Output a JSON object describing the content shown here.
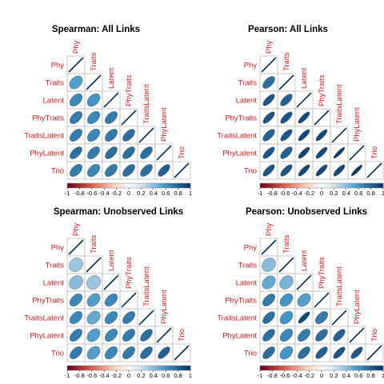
{
  "chart_data": [
    {
      "type": "heatmap",
      "title": "Spearman: All Links",
      "variables": [
        "Phy",
        "Traits",
        "Latent",
        "PhyTraits",
        "TraitsLatent",
        "PhyLatent",
        "Trio"
      ],
      "shape": "ellipse",
      "layout": "lower-triangle",
      "matrix": [
        [
          1
        ],
        [
          0.55,
          1
        ],
        [
          0.65,
          0.6,
          1
        ],
        [
          0.7,
          0.65,
          0.7,
          1
        ],
        [
          0.7,
          0.65,
          0.7,
          0.75,
          1
        ],
        [
          0.75,
          0.7,
          0.75,
          0.75,
          0.75,
          1
        ],
        [
          0.7,
          0.65,
          0.7,
          0.75,
          0.75,
          0.8,
          1
        ]
      ],
      "colorbar": {
        "range": [
          -1,
          1
        ],
        "ticks": [
          "-1",
          "-0.8",
          "-0.6",
          "-0.4",
          "-0.2",
          "0",
          "0.2",
          "0.4",
          "0.6",
          "0.8",
          "1"
        ]
      }
    },
    {
      "type": "heatmap",
      "title": "Pearson: All Links",
      "variables": [
        "Phy",
        "Traits",
        "Latent",
        "PhyTraits",
        "TraitsLatent",
        "PhyLatent",
        "Trio"
      ],
      "shape": "ellipse",
      "layout": "lower-triangle",
      "matrix": [
        [
          1
        ],
        [
          0.75,
          1
        ],
        [
          0.85,
          0.8,
          1
        ],
        [
          0.85,
          0.85,
          0.9,
          1
        ],
        [
          0.8,
          0.85,
          0.9,
          0.9,
          1
        ],
        [
          0.85,
          0.8,
          0.9,
          0.9,
          0.95,
          1
        ],
        [
          0.85,
          0.85,
          0.9,
          0.9,
          0.9,
          0.95,
          1
        ]
      ],
      "colorbar": {
        "range": [
          -1,
          1
        ],
        "ticks": [
          "-1",
          "-0.8",
          "-0.6",
          "-0.4",
          "-0.2",
          "0",
          "0.2",
          "0.4",
          "0.6",
          "0.8",
          "1"
        ]
      }
    },
    {
      "type": "heatmap",
      "title": "Spearman: Unobserved Links",
      "variables": [
        "Phy",
        "Traits",
        "Latent",
        "PhyTraits",
        "TraitsLatent",
        "PhyLatent",
        "Trio"
      ],
      "shape": "ellipse",
      "layout": "lower-triangle",
      "matrix": [
        [
          1
        ],
        [
          0.35,
          1
        ],
        [
          0.4,
          0.35,
          1
        ],
        [
          0.65,
          0.55,
          0.65,
          1
        ],
        [
          0.65,
          0.5,
          0.65,
          0.7,
          1
        ],
        [
          0.7,
          0.55,
          0.65,
          0.7,
          0.75,
          1
        ],
        [
          0.7,
          0.55,
          0.65,
          0.7,
          0.75,
          0.8,
          1
        ]
      ],
      "colorbar": {
        "range": [
          -1,
          1
        ],
        "ticks": [
          "-1",
          "-0.8",
          "-0.6",
          "-0.4",
          "-0.2",
          "0",
          "0.2",
          "0.4",
          "0.6",
          "0.8",
          "1"
        ]
      }
    },
    {
      "type": "heatmap",
      "title": "Pearson: Unobserved Links",
      "variables": [
        "Phy",
        "Traits",
        "Latent",
        "PhyTraits",
        "TraitsLatent",
        "PhyLatent",
        "Trio"
      ],
      "shape": "ellipse",
      "layout": "lower-triangle",
      "matrix": [
        [
          1
        ],
        [
          0.4,
          1
        ],
        [
          0.5,
          0.45,
          1
        ],
        [
          0.7,
          0.6,
          0.55,
          1
        ],
        [
          0.75,
          0.6,
          0.9,
          0.7,
          1
        ],
        [
          0.75,
          0.65,
          0.7,
          0.75,
          0.8,
          1
        ],
        [
          0.75,
          0.6,
          0.75,
          0.8,
          0.85,
          0.85,
          1
        ]
      ],
      "colorbar": {
        "range": [
          -1,
          1
        ],
        "ticks": [
          "-1",
          "-0.8",
          "-0.6",
          "-0.4",
          "-0.2",
          "0",
          "0.2",
          "0.4",
          "0.6",
          "0.8",
          "1"
        ]
      }
    }
  ]
}
